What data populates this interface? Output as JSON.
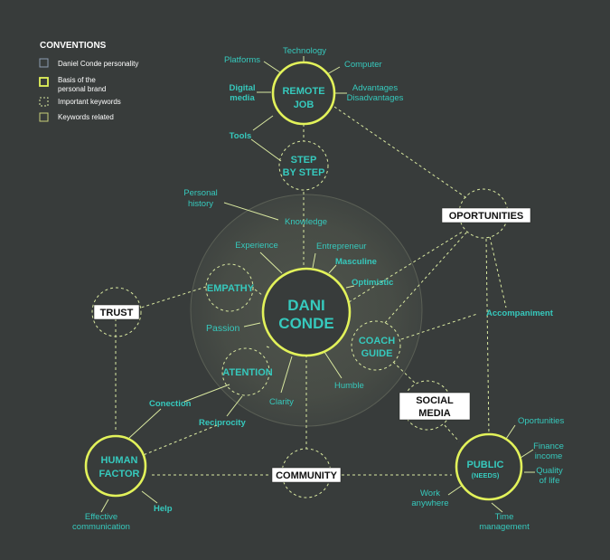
{
  "legend": {
    "title": "CONVENTIONS",
    "items": [
      {
        "label": "Daniel Conde personality"
      },
      {
        "label": "Basis of the\npersonal brand"
      },
      {
        "label": "Important keywords"
      },
      {
        "label": "Keywords related"
      }
    ]
  },
  "center": {
    "line1": "DANI",
    "line2": "CONDE"
  },
  "hubs": {
    "remote_job": {
      "line1": "REMOTE",
      "line2": "JOB"
    },
    "human_factor": {
      "line1": "HUMAN",
      "line2": "FACTOR"
    },
    "public": {
      "line1": "PUBLIC",
      "line2": "(NEEDS)"
    }
  },
  "keywords": {
    "step_by_step": {
      "line1": "STEP",
      "line2": "BY STEP"
    },
    "empathy": "EMPATHY",
    "atention": "ATENTION",
    "coach_guide": {
      "line1": "COACH",
      "line2": "GUIDE"
    }
  },
  "boxes": {
    "trust": "TRUST",
    "oportunities": "OPORTUNITIES",
    "social_media": {
      "line1": "SOCIAL",
      "line2": "MEDIA"
    },
    "community": "COMMUNITY"
  },
  "related": {
    "platforms": "Platforms",
    "technology": "Technology",
    "computer": "Computer",
    "digital_media": {
      "line1": "Digital",
      "line2": "media"
    },
    "advantages": {
      "line1": "Advantages",
      "line2": "Disadvantages"
    },
    "tools": "Tools",
    "personal_history": {
      "line1": "Personal",
      "line2": "history"
    },
    "knowledge": "Knowledge",
    "experience": "Experience",
    "entrepreneur": "Entrepreneur",
    "masculine": "Masculine",
    "optimistic": "Optimistic",
    "accompaniment": "Accompaniment",
    "passion": "Passion",
    "humble": "Humble",
    "clarity": "Clarity",
    "conection": "Conection",
    "reciprocity": "Reciprocity",
    "help": "Help",
    "effective_communication": {
      "line1": "Effective",
      "line2": "communication"
    },
    "oportunities_small": "Oportunities",
    "finance_income": {
      "line1": "Finance",
      "line2": "income"
    },
    "quality_of_life": {
      "line1": "Quality",
      "line2": "of life"
    },
    "work_anywhere": {
      "line1": "Work",
      "line2": "anywhere"
    },
    "time_management": {
      "line1": "Time",
      "line2": "management"
    }
  },
  "colors": {
    "background": "#383c3b",
    "accent_text": "#36c9bd",
    "brand_ring": "#e2f25a",
    "connector": "#d9e8a0"
  }
}
